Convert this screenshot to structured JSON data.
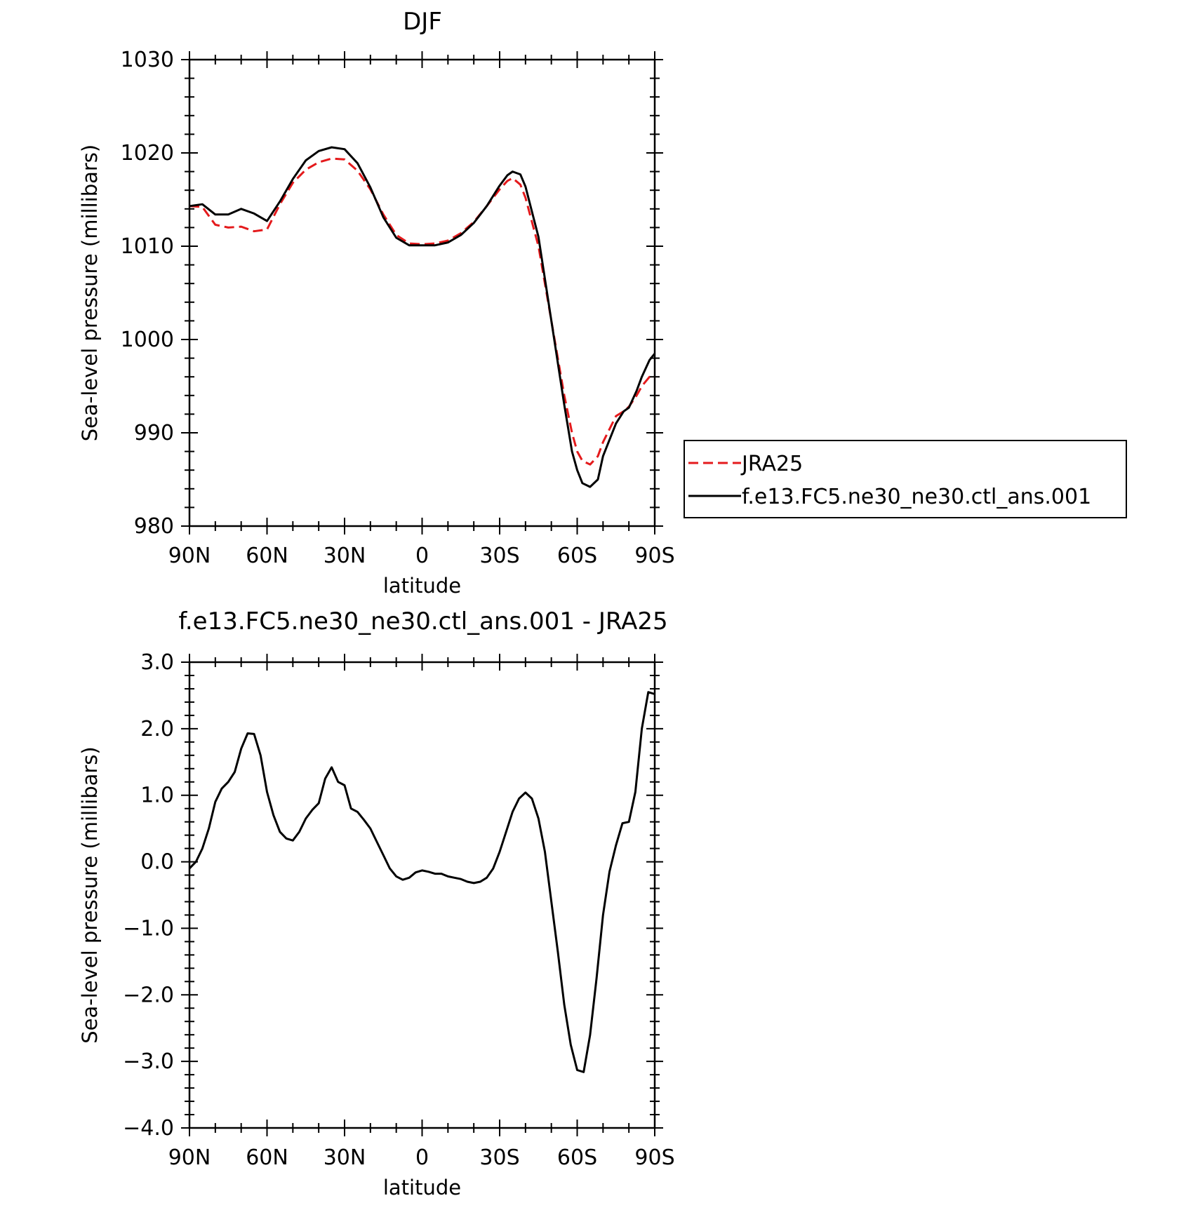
{
  "chart_data": [
    {
      "type": "line",
      "title": "DJF",
      "xlabel": "latitude",
      "ylabel": "Sea-level pressure (millibars)",
      "xlim": [
        90,
        -90
      ],
      "ylim": [
        980,
        1030
      ],
      "xticks": [
        90,
        60,
        30,
        0,
        -30,
        -60,
        -90
      ],
      "xtick_labels": [
        "90N",
        "60N",
        "30N",
        "0",
        "30S",
        "60S",
        "90S"
      ],
      "yticks": [
        980,
        990,
        1000,
        1010,
        1020,
        1030
      ],
      "ytick_labels": [
        "980",
        "990",
        "1000",
        "1010",
        "1020",
        "1030"
      ],
      "y_minor_step": 2,
      "x_minor_step": 10,
      "grid": false,
      "legend": "right",
      "x": [
        90,
        85,
        80,
        75,
        70,
        65,
        60,
        55,
        50,
        45,
        40,
        35,
        30,
        25,
        20,
        15,
        10,
        5,
        0,
        -5,
        -10,
        -15,
        -20,
        -25,
        -30,
        -33,
        -35,
        -38,
        -40,
        -45,
        -50,
        -55,
        -58,
        -60,
        -62,
        -65,
        -68,
        -70,
        -75,
        -78,
        -80,
        -83,
        -85,
        -88,
        -90
      ],
      "series": [
        {
          "name": "JRA25",
          "color": "#e41a1c",
          "dash": "dashed",
          "values": [
            1014.3,
            1014.2,
            1012.3,
            1012.0,
            1012.1,
            1011.6,
            1011.8,
            1014.5,
            1016.8,
            1018.2,
            1019.0,
            1019.4,
            1019.3,
            1018.1,
            1016.1,
            1013.4,
            1011.2,
            1010.3,
            1010.2,
            1010.3,
            1010.6,
            1011.4,
            1012.6,
            1014.3,
            1016.1,
            1017.0,
            1017.3,
            1016.6,
            1015.2,
            1010.0,
            1002.0,
            994.0,
            990.0,
            988.0,
            987.0,
            986.6,
            987.5,
            989.0,
            991.8,
            992.3,
            992.8,
            994.0,
            995.0,
            996.0,
            996.0
          ]
        },
        {
          "name": "f.e13.FC5.ne30_ne30.ctl_ans.001",
          "color": "#000000",
          "dash": "solid",
          "values": [
            1014.3,
            1014.5,
            1013.4,
            1013.4,
            1014.0,
            1013.5,
            1012.7,
            1014.8,
            1017.2,
            1019.2,
            1020.2,
            1020.6,
            1020.4,
            1018.9,
            1016.3,
            1013.1,
            1010.9,
            1010.1,
            1010.1,
            1010.1,
            1010.4,
            1011.2,
            1012.5,
            1014.3,
            1016.5,
            1017.6,
            1018.0,
            1017.7,
            1016.4,
            1011.0,
            1002.0,
            993.0,
            988.0,
            986.0,
            984.6,
            984.2,
            985.0,
            987.5,
            991.0,
            992.3,
            992.7,
            994.5,
            996.0,
            997.8,
            998.5
          ]
        }
      ]
    },
    {
      "type": "line",
      "title": "f.e13.FC5.ne30_ne30.ctl_ans.001 - JRA25",
      "xlabel": "latitude",
      "ylabel": "Sea-level pressure (millibars)",
      "xlim": [
        90,
        -90
      ],
      "ylim": [
        -4.0,
        3.0
      ],
      "xticks": [
        90,
        60,
        30,
        0,
        -30,
        -60,
        -90
      ],
      "xtick_labels": [
        "90N",
        "60N",
        "30N",
        "0",
        "30S",
        "60S",
        "90S"
      ],
      "yticks": [
        -4.0,
        -3.0,
        -2.0,
        -1.0,
        0.0,
        1.0,
        2.0,
        3.0
      ],
      "ytick_labels": [
        "−4.0",
        "−3.0",
        "−2.0",
        "−1.0",
        "0.0",
        "1.0",
        "2.0",
        "3.0"
      ],
      "y_minor_step": 0.2,
      "x_minor_step": 10,
      "grid": false,
      "legend": "none",
      "x": [
        90,
        87.5,
        85,
        82.5,
        80,
        77.5,
        75,
        72.5,
        70,
        67.5,
        65,
        62.5,
        60,
        57.5,
        55,
        52.5,
        50,
        47.5,
        45,
        42.5,
        40,
        37.5,
        35,
        32.5,
        30,
        27.5,
        25,
        22.5,
        20,
        17.5,
        15,
        12.5,
        10,
        7.5,
        5,
        2.5,
        0,
        -2.5,
        -5,
        -7.5,
        -10,
        -12.5,
        -15,
        -17.5,
        -20,
        -22.5,
        -25,
        -27.5,
        -30,
        -32.5,
        -35,
        -37.5,
        -40,
        -42.5,
        -45,
        -47.5,
        -50,
        -52.5,
        -55,
        -57.5,
        -60,
        -62.5,
        -65,
        -67.5,
        -70,
        -72.5,
        -75,
        -77.5,
        -80,
        -82.5,
        -85,
        -87.5,
        -90
      ],
      "series": [
        {
          "name": "",
          "color": "#000000",
          "dash": "solid",
          "values": [
            -0.1,
            0.0,
            0.2,
            0.5,
            0.9,
            1.1,
            1.2,
            1.35,
            1.7,
            1.93,
            1.92,
            1.6,
            1.05,
            0.7,
            0.45,
            0.35,
            0.32,
            0.45,
            0.65,
            0.78,
            0.88,
            1.25,
            1.42,
            1.2,
            1.15,
            0.8,
            0.75,
            0.63,
            0.5,
            0.3,
            0.1,
            -0.1,
            -0.22,
            -0.27,
            -0.24,
            -0.16,
            -0.13,
            -0.15,
            -0.18,
            -0.18,
            -0.22,
            -0.24,
            -0.26,
            -0.3,
            -0.32,
            -0.3,
            -0.24,
            -0.1,
            0.15,
            0.45,
            0.75,
            0.95,
            1.04,
            0.95,
            0.65,
            0.15,
            -0.6,
            -1.35,
            -2.15,
            -2.75,
            -3.13,
            -3.16,
            -2.6,
            -1.75,
            -0.8,
            -0.15,
            0.25,
            0.58,
            0.6,
            1.05,
            2.0,
            2.55,
            2.52
          ]
        }
      ]
    }
  ]
}
